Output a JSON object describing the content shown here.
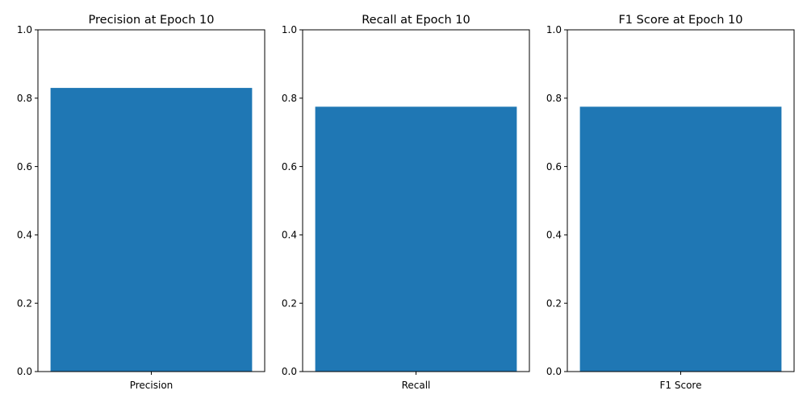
{
  "chart_data": [
    {
      "type": "bar",
      "title": "Precision at Epoch 10",
      "categories": [
        "Precision"
      ],
      "values": [
        0.83
      ],
      "ylim": [
        0,
        1
      ],
      "yticks": [
        "0.0",
        "0.2",
        "0.4",
        "0.6",
        "0.8",
        "1.0"
      ],
      "bar_color": "#1f77b4",
      "grid": false
    },
    {
      "type": "bar",
      "title": "Recall at Epoch 10",
      "categories": [
        "Recall"
      ],
      "values": [
        0.775
      ],
      "ylim": [
        0,
        1
      ],
      "yticks": [
        "0.0",
        "0.2",
        "0.4",
        "0.6",
        "0.8",
        "1.0"
      ],
      "bar_color": "#1f77b4",
      "grid": false
    },
    {
      "type": "bar",
      "title": "F1 Score at Epoch 10",
      "categories": [
        "F1 Score"
      ],
      "values": [
        0.775
      ],
      "ylim": [
        0,
        1
      ],
      "yticks": [
        "0.0",
        "0.2",
        "0.4",
        "0.6",
        "0.8",
        "1.0"
      ],
      "bar_color": "#1f77b4",
      "grid": false
    }
  ]
}
